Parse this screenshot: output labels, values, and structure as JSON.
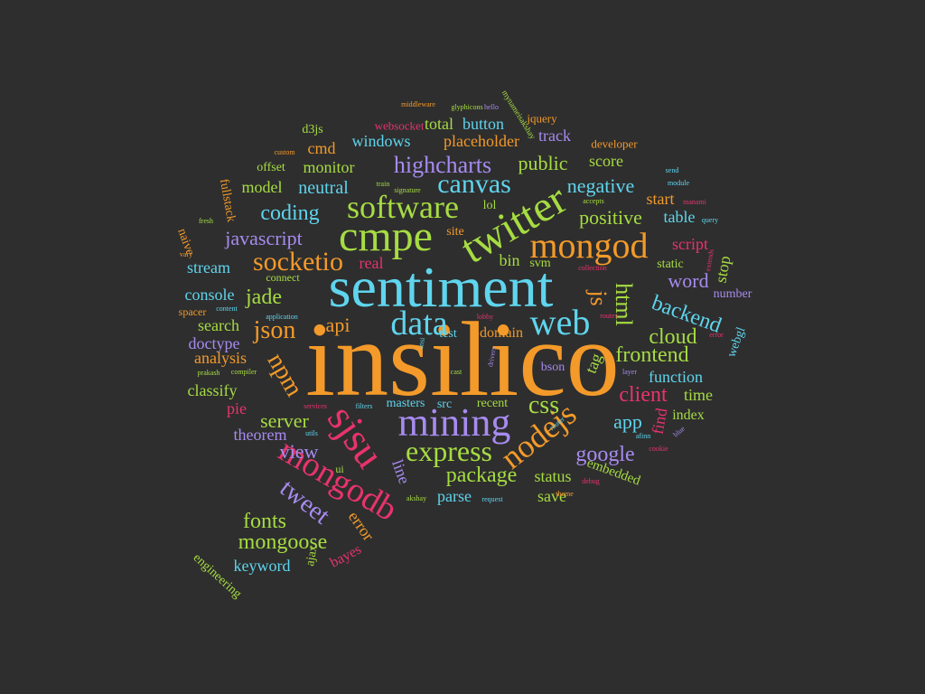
{
  "palette": {
    "orange": "#f39a2a",
    "cyan": "#5fd5ee",
    "pink": "#e8336d",
    "green": "#a6dc42",
    "purple": "#a78bf0",
    "background": "#2e2e2e"
  },
  "words": [
    {
      "text": "insilico",
      "c": "orange"
    },
    {
      "text": "sentiment",
      "c": "cyan"
    },
    {
      "text": "mining",
      "c": "purple"
    },
    {
      "text": "twitter",
      "c": "green"
    },
    {
      "text": "mongod",
      "c": "orange"
    },
    {
      "text": "cmpe",
      "c": "green"
    },
    {
      "text": "web",
      "c": "cyan"
    },
    {
      "text": "sjsu",
      "c": "pink"
    },
    {
      "text": "mongodb",
      "c": "pink"
    },
    {
      "text": "data",
      "c": "cyan"
    },
    {
      "text": "software",
      "c": "green"
    },
    {
      "text": "nodejs",
      "c": "orange"
    },
    {
      "text": "express",
      "c": "green"
    },
    {
      "text": "socketio",
      "c": "orange"
    },
    {
      "text": "json",
      "c": "orange"
    },
    {
      "text": "npm",
      "c": "orange"
    },
    {
      "text": "tweet",
      "c": "purple"
    },
    {
      "text": "canvas",
      "c": "cyan"
    },
    {
      "text": "highcharts",
      "c": "purple"
    },
    {
      "text": "jade",
      "c": "green"
    },
    {
      "text": "html",
      "c": "green"
    },
    {
      "text": "js",
      "c": "orange"
    },
    {
      "text": "css",
      "c": "green"
    },
    {
      "text": "backend",
      "c": "cyan"
    },
    {
      "text": "frontend",
      "c": "green"
    },
    {
      "text": "cloud",
      "c": "green"
    },
    {
      "text": "google",
      "c": "purple"
    },
    {
      "text": "client",
      "c": "pink"
    },
    {
      "text": "package",
      "c": "green"
    },
    {
      "text": "mongoose",
      "c": "green"
    },
    {
      "text": "fonts",
      "c": "green"
    },
    {
      "text": "coding",
      "c": "cyan"
    },
    {
      "text": "javascript",
      "c": "purple"
    },
    {
      "text": "negative",
      "c": "cyan"
    },
    {
      "text": "positive",
      "c": "green"
    },
    {
      "text": "public",
      "c": "green"
    },
    {
      "text": "word",
      "c": "purple"
    },
    {
      "text": "app",
      "c": "cyan"
    },
    {
      "text": "server",
      "c": "green"
    },
    {
      "text": "view",
      "c": "purple"
    },
    {
      "text": "api",
      "c": "orange"
    },
    {
      "text": "neutral",
      "c": "cyan"
    },
    {
      "text": "placeholder",
      "c": "orange"
    },
    {
      "text": "windows",
      "c": "cyan"
    },
    {
      "text": "total",
      "c": "green"
    },
    {
      "text": "button",
      "c": "cyan"
    },
    {
      "text": "track",
      "c": "purple"
    },
    {
      "text": "monitor",
      "c": "green"
    },
    {
      "text": "cmd",
      "c": "orange"
    },
    {
      "text": "score",
      "c": "green"
    },
    {
      "text": "model",
      "c": "green"
    },
    {
      "text": "start",
      "c": "orange"
    },
    {
      "text": "table",
      "c": "cyan"
    },
    {
      "text": "script",
      "c": "pink"
    },
    {
      "text": "stream",
      "c": "cyan"
    },
    {
      "text": "real",
      "c": "pink"
    },
    {
      "text": "bin",
      "c": "green"
    },
    {
      "text": "console",
      "c": "cyan"
    },
    {
      "text": "search",
      "c": "green"
    },
    {
      "text": "doctype",
      "c": "purple"
    },
    {
      "text": "analysis",
      "c": "orange"
    },
    {
      "text": "classify",
      "c": "green"
    },
    {
      "text": "pie",
      "c": "pink"
    },
    {
      "text": "theorem",
      "c": "purple"
    },
    {
      "text": "function",
      "c": "cyan"
    },
    {
      "text": "time",
      "c": "green"
    },
    {
      "text": "index",
      "c": "green"
    },
    {
      "text": "status",
      "c": "green"
    },
    {
      "text": "save",
      "c": "green"
    },
    {
      "text": "parse",
      "c": "cyan"
    },
    {
      "text": "embedded",
      "c": "green"
    },
    {
      "text": "keyword",
      "c": "cyan"
    },
    {
      "text": "error",
      "c": "orange"
    },
    {
      "text": "bayes",
      "c": "pink"
    },
    {
      "text": "engineering",
      "c": "green"
    },
    {
      "text": "ajax",
      "c": "green"
    },
    {
      "text": "line",
      "c": "purple"
    },
    {
      "text": "domain",
      "c": "orange"
    },
    {
      "text": "masters",
      "c": "cyan"
    },
    {
      "text": "src",
      "c": "cyan"
    },
    {
      "text": "recent",
      "c": "green"
    },
    {
      "text": "find",
      "c": "pink"
    },
    {
      "text": "tag",
      "c": "green"
    },
    {
      "text": "bson",
      "c": "purple"
    },
    {
      "text": "test",
      "c": "cyan"
    },
    {
      "text": "stop",
      "c": "green"
    },
    {
      "text": "webgl",
      "c": "cyan"
    },
    {
      "text": "number",
      "c": "purple"
    },
    {
      "text": "static",
      "c": "green"
    },
    {
      "text": "svm",
      "c": "green"
    },
    {
      "text": "lol",
      "c": "green"
    },
    {
      "text": "site",
      "c": "orange"
    },
    {
      "text": "connect",
      "c": "green"
    },
    {
      "text": "spacer",
      "c": "orange"
    },
    {
      "text": "naive",
      "c": "orange"
    },
    {
      "text": "fullstack",
      "c": "orange"
    },
    {
      "text": "offset",
      "c": "green"
    },
    {
      "text": "d3js",
      "c": "green"
    },
    {
      "text": "websocket",
      "c": "pink"
    },
    {
      "text": "jquery",
      "c": "orange"
    },
    {
      "text": "developer",
      "c": "orange"
    },
    {
      "text": "ui",
      "c": "green"
    },
    {
      "text": "middleware",
      "c": "orange"
    },
    {
      "text": "glyphicons",
      "c": "green"
    },
    {
      "text": "hello",
      "c": "purple"
    },
    {
      "text": "mynameisakshay",
      "c": "green"
    },
    {
      "text": "custom",
      "c": "orange"
    },
    {
      "text": "train",
      "c": "green"
    },
    {
      "text": "signature",
      "c": "green"
    },
    {
      "text": "accepts",
      "c": "green"
    },
    {
      "text": "send",
      "c": "cyan"
    },
    {
      "text": "module",
      "c": "cyan"
    },
    {
      "text": "manami",
      "c": "pink"
    },
    {
      "text": "query",
      "c": "cyan"
    },
    {
      "text": "fresh",
      "c": "green"
    },
    {
      "text": "vary",
      "c": "orange"
    },
    {
      "text": "content",
      "c": "cyan"
    },
    {
      "text": "application",
      "c": "cyan"
    },
    {
      "text": "prakash",
      "c": "green"
    },
    {
      "text": "compiler",
      "c": "green"
    },
    {
      "text": "akshay",
      "c": "green"
    },
    {
      "text": "request",
      "c": "cyan"
    },
    {
      "text": "theme",
      "c": "orange"
    },
    {
      "text": "debug",
      "c": "pink"
    },
    {
      "text": "cookie",
      "c": "pink"
    },
    {
      "text": "afinn",
      "c": "cyan"
    },
    {
      "text": "filters",
      "c": "cyan"
    },
    {
      "text": "services",
      "c": "pink"
    },
    {
      "text": "utils",
      "c": "cyan"
    },
    {
      "text": "cast",
      "c": "green"
    },
    {
      "text": "drivers",
      "c": "purple"
    },
    {
      "text": "layer",
      "c": "purple"
    },
    {
      "text": "error",
      "c": "pink"
    },
    {
      "text": "extends",
      "c": "pink"
    },
    {
      "text": "collection",
      "c": "pink"
    },
    {
      "text": "routes",
      "c": "pink"
    },
    {
      "text": "lobby",
      "c": "pink"
    },
    {
      "text": "router",
      "c": "cyan"
    },
    {
      "text": "blue",
      "c": "purple"
    },
    {
      "text": "ansi",
      "c": "cyan"
    }
  ]
}
